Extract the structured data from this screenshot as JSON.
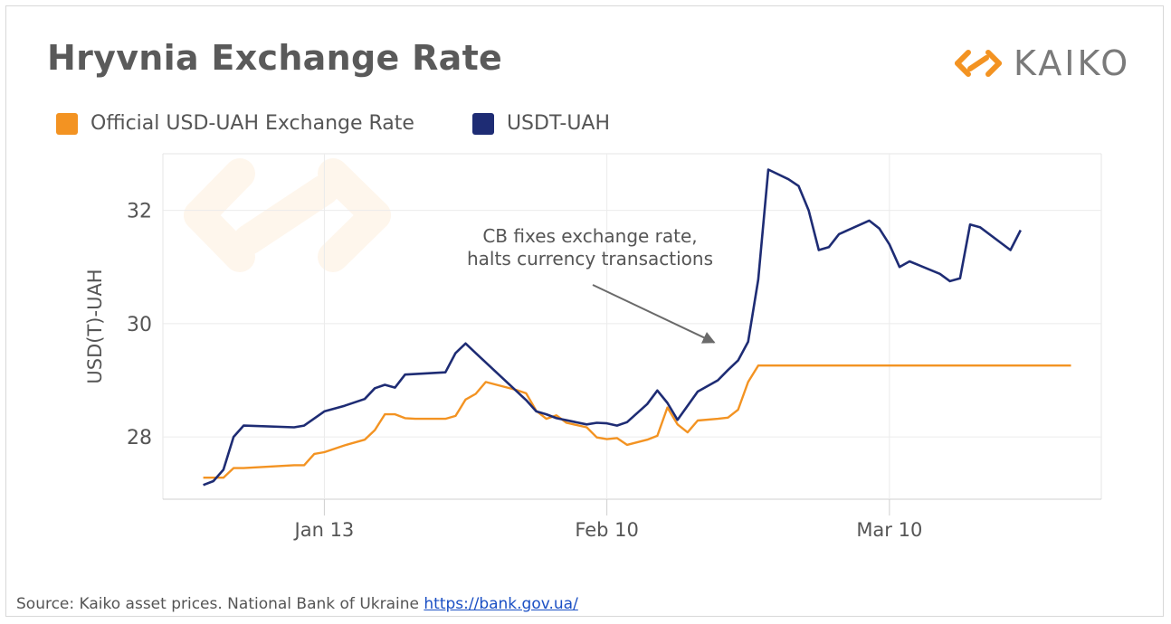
{
  "title": "Hryvnia Exchange Rate",
  "brand": {
    "name": "KAIKO",
    "icon": "kaiko-logo-icon",
    "color": "#f39322"
  },
  "source": {
    "text": "Source: Kaiko asset prices. National Bank of Ukraine",
    "link": "https://bank.gov.ua/"
  },
  "chart_data": {
    "type": "line",
    "title": "Hryvnia Exchange Rate",
    "xlabel": "",
    "ylabel": "USD(T)-UAH",
    "x_ticks": [
      {
        "date": "2022-01-13",
        "label": "Jan 13"
      },
      {
        "date": "2022-02-10",
        "label": "Feb 10"
      },
      {
        "date": "2022-03-10",
        "label": "Mar 10"
      }
    ],
    "y_ticks": [
      28,
      30,
      32
    ],
    "xlim": [
      "2021-12-28",
      "2022-03-31"
    ],
    "ylim": [
      26.9,
      33.0
    ],
    "grid": true,
    "legend_position": "top-left",
    "annotation": {
      "lines": [
        "CB fixes exchange rate,",
        "halts currency transactions"
      ],
      "arrow_to": {
        "date": "2022-02-21",
        "value": 29.7
      }
    },
    "series": [
      {
        "name": "Official USD-UAH Exchange Rate",
        "color": "#f39322",
        "points": [
          [
            "2022-01-01",
            27.28
          ],
          [
            "2022-01-02",
            27.28
          ],
          [
            "2022-01-03",
            27.28
          ],
          [
            "2022-01-04",
            27.45
          ],
          [
            "2022-01-05",
            27.45
          ],
          [
            "2022-01-06",
            27.46
          ],
          [
            "2022-01-08",
            27.48
          ],
          [
            "2022-01-10",
            27.5
          ],
          [
            "2022-01-11",
            27.5
          ],
          [
            "2022-01-12",
            27.7
          ],
          [
            "2022-01-13",
            27.73
          ],
          [
            "2022-01-15",
            27.85
          ],
          [
            "2022-01-17",
            27.95
          ],
          [
            "2022-01-18",
            28.12
          ],
          [
            "2022-01-19",
            28.4
          ],
          [
            "2022-01-20",
            28.4
          ],
          [
            "2022-01-21",
            28.33
          ],
          [
            "2022-01-22",
            28.32
          ],
          [
            "2022-01-24",
            28.32
          ],
          [
            "2022-01-25",
            28.32
          ],
          [
            "2022-01-26",
            28.37
          ],
          [
            "2022-01-27",
            28.66
          ],
          [
            "2022-01-28",
            28.76
          ],
          [
            "2022-01-29",
            28.97
          ],
          [
            "2022-02-01",
            28.83
          ],
          [
            "2022-02-02",
            28.77
          ],
          [
            "2022-02-03",
            28.46
          ],
          [
            "2022-02-04",
            28.32
          ],
          [
            "2022-02-05",
            28.38
          ],
          [
            "2022-02-06",
            28.25
          ],
          [
            "2022-02-08",
            28.17
          ],
          [
            "2022-02-09",
            27.99
          ],
          [
            "2022-02-10",
            27.96
          ],
          [
            "2022-02-11",
            27.98
          ],
          [
            "2022-02-12",
            27.86
          ],
          [
            "2022-02-14",
            27.95
          ],
          [
            "2022-02-15",
            28.02
          ],
          [
            "2022-02-16",
            28.52
          ],
          [
            "2022-02-17",
            28.22
          ],
          [
            "2022-02-18",
            28.08
          ],
          [
            "2022-02-19",
            28.29
          ],
          [
            "2022-02-21",
            28.32
          ],
          [
            "2022-02-22",
            28.34
          ],
          [
            "2022-02-23",
            28.48
          ],
          [
            "2022-02-24",
            28.97
          ],
          [
            "2022-02-25",
            29.26
          ],
          [
            "2022-03-28",
            29.26
          ]
        ]
      },
      {
        "name": "USDT-UAH",
        "color": "#1e2c74",
        "points": [
          [
            "2022-01-01",
            27.15
          ],
          [
            "2022-01-02",
            27.22
          ],
          [
            "2022-01-03",
            27.42
          ],
          [
            "2022-01-04",
            28.0
          ],
          [
            "2022-01-05",
            28.2
          ],
          [
            "2022-01-10",
            28.17
          ],
          [
            "2022-01-11",
            28.2
          ],
          [
            "2022-01-13",
            28.45
          ],
          [
            "2022-01-15",
            28.55
          ],
          [
            "2022-01-17",
            28.67
          ],
          [
            "2022-01-18",
            28.86
          ],
          [
            "2022-01-19",
            28.92
          ],
          [
            "2022-01-20",
            28.87
          ],
          [
            "2022-01-21",
            29.1
          ],
          [
            "2022-01-25",
            29.14
          ],
          [
            "2022-01-26",
            29.48
          ],
          [
            "2022-01-27",
            29.65
          ],
          [
            "2022-01-28",
            29.48
          ],
          [
            "2022-02-02",
            28.65
          ],
          [
            "2022-02-03",
            28.45
          ],
          [
            "2022-02-04",
            28.4
          ],
          [
            "2022-02-05",
            28.33
          ],
          [
            "2022-02-08",
            28.22
          ],
          [
            "2022-02-09",
            28.25
          ],
          [
            "2022-02-10",
            28.24
          ],
          [
            "2022-02-11",
            28.2
          ],
          [
            "2022-02-12",
            28.26
          ],
          [
            "2022-02-14",
            28.58
          ],
          [
            "2022-02-15",
            28.82
          ],
          [
            "2022-02-16",
            28.6
          ],
          [
            "2022-02-17",
            28.3
          ],
          [
            "2022-02-19",
            28.8
          ],
          [
            "2022-02-21",
            29.0
          ],
          [
            "2022-02-22",
            29.18
          ],
          [
            "2022-02-23",
            29.35
          ],
          [
            "2022-02-24",
            29.68
          ],
          [
            "2022-02-25",
            30.78
          ],
          [
            "2022-02-26",
            32.72
          ],
          [
            "2022-02-28",
            32.55
          ],
          [
            "2022-03-01",
            32.43
          ],
          [
            "2022-03-02",
            32.0
          ],
          [
            "2022-03-03",
            31.3
          ],
          [
            "2022-03-04",
            31.35
          ],
          [
            "2022-03-05",
            31.58
          ],
          [
            "2022-03-08",
            31.82
          ],
          [
            "2022-03-09",
            31.68
          ],
          [
            "2022-03-10",
            31.4
          ],
          [
            "2022-03-11",
            31.0
          ],
          [
            "2022-03-12",
            31.1
          ],
          [
            "2022-03-15",
            30.88
          ],
          [
            "2022-03-16",
            30.75
          ],
          [
            "2022-03-17",
            30.8
          ],
          [
            "2022-03-18",
            31.75
          ],
          [
            "2022-03-19",
            31.7
          ],
          [
            "2022-03-22",
            31.3
          ],
          [
            "2022-03-23",
            31.65
          ]
        ]
      }
    ]
  }
}
